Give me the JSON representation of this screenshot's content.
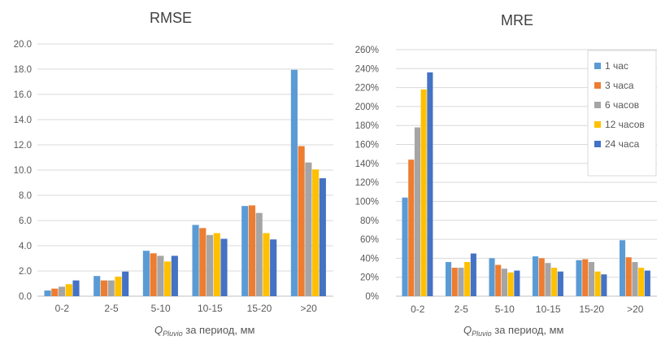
{
  "colors": {
    "series": [
      "#5B9BD5",
      "#ED7D31",
      "#A5A5A5",
      "#FFC000",
      "#4472C4"
    ],
    "grid": "#D9D9D9",
    "text": "#595959",
    "title": "#404040"
  },
  "chart_data": [
    {
      "type": "bar",
      "title": "RMSE",
      "xlabel": "QPluvio за период, мм",
      "xlabel_parts": {
        "sym": "Q",
        "sub": "Pluvio",
        "rest": " за период, мм"
      },
      "ylabel": "",
      "categories": [
        "0-2",
        "2-5",
        "5-10",
        "10-15",
        "15-20",
        ">20"
      ],
      "ylim": [
        0,
        20
      ],
      "yticks": [
        "0.0",
        "2.0",
        "4.0",
        "6.0",
        "8.0",
        "10.0",
        "12.0",
        "14.0",
        "16.0",
        "18.0",
        "20.0"
      ],
      "grid": true,
      "legend": "none",
      "series": [
        {
          "values": [
            0.45,
            1.6,
            3.6,
            5.65,
            7.15,
            17.95
          ]
        },
        {
          "values": [
            0.6,
            1.25,
            3.4,
            5.4,
            7.2,
            11.9
          ]
        },
        {
          "values": [
            0.75,
            1.25,
            3.2,
            4.85,
            6.6,
            10.6
          ]
        },
        {
          "values": [
            0.95,
            1.55,
            2.75,
            5.0,
            5.0,
            10.05
          ]
        },
        {
          "values": [
            1.25,
            1.95,
            3.2,
            4.55,
            4.5,
            9.35
          ]
        }
      ]
    },
    {
      "type": "bar",
      "title": "MRE",
      "xlabel": "QPluvio за период, мм",
      "xlabel_parts": {
        "sym": "Q",
        "sub": "Pluvio",
        "rest": " за период, мм"
      },
      "ylabel": "",
      "categories": [
        "0-2",
        "2-5",
        "5-10",
        "10-15",
        "15-20",
        ">20"
      ],
      "ylim": [
        0,
        260
      ],
      "yticks": [
        "0%",
        "20%",
        "40%",
        "60%",
        "80%",
        "100%",
        "120%",
        "140%",
        "160%",
        "180%",
        "200%",
        "220%",
        "240%",
        "260%"
      ],
      "grid": true,
      "legend": "top-right",
      "series": [
        {
          "name": "1 час",
          "values": [
            104,
            36,
            40,
            42,
            38,
            59
          ]
        },
        {
          "name": "3 часа",
          "values": [
            144,
            30,
            33,
            40,
            39,
            41
          ]
        },
        {
          "name": "6 часов",
          "values": [
            178,
            30,
            29,
            35,
            36,
            36
          ]
        },
        {
          "name": "12 часов",
          "values": [
            218,
            36,
            25,
            30,
            26,
            30
          ]
        },
        {
          "name": "24 часа",
          "values": [
            236,
            45,
            27,
            26,
            23,
            27
          ]
        }
      ]
    }
  ]
}
